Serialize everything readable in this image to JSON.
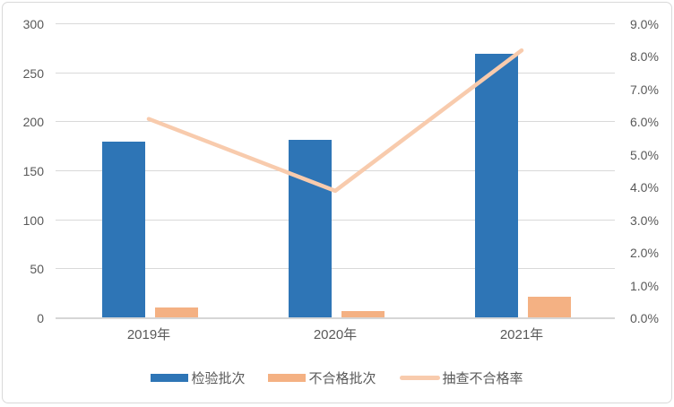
{
  "chart": {
    "background": "#ffffff",
    "border_color": "#d9d9d9",
    "grid_color": "#d9d9d9",
    "axis_text_color": "#595959"
  },
  "chart_data": {
    "type": "bar",
    "subtype": "bar-line-combo",
    "title": "",
    "categories": [
      "2019年",
      "2020年",
      "2021年"
    ],
    "series": [
      {
        "key": "inspected-batches",
        "name": "检验批次",
        "type": "bar",
        "axis": "left",
        "color": "#2e75b6",
        "values": [
          180,
          182,
          270
        ]
      },
      {
        "key": "failed-batches",
        "name": "不合格批次",
        "type": "bar",
        "axis": "left",
        "color": "#f4b183",
        "values": [
          11,
          7,
          22
        ]
      },
      {
        "key": "sample-fail-rate",
        "name": "抽查不合格率",
        "type": "line",
        "axis": "right",
        "color": "#f8cbad",
        "values": [
          6.1,
          3.9,
          8.2
        ],
        "unit": "%"
      }
    ],
    "left_axis": {
      "min": 0,
      "max": 300,
      "step": 50,
      "tick_labels": [
        "300",
        "250",
        "200",
        "150",
        "100",
        "50",
        "0"
      ]
    },
    "right_axis": {
      "min": 0,
      "max": 9,
      "step": 1,
      "unit": "%",
      "tick_labels": [
        "9.0%",
        "8.0%",
        "7.0%",
        "6.0%",
        "5.0%",
        "4.0%",
        "3.0%",
        "2.0%",
        "1.0%",
        "0.0%"
      ]
    },
    "grid": "horizontal",
    "legend_position": "bottom"
  }
}
